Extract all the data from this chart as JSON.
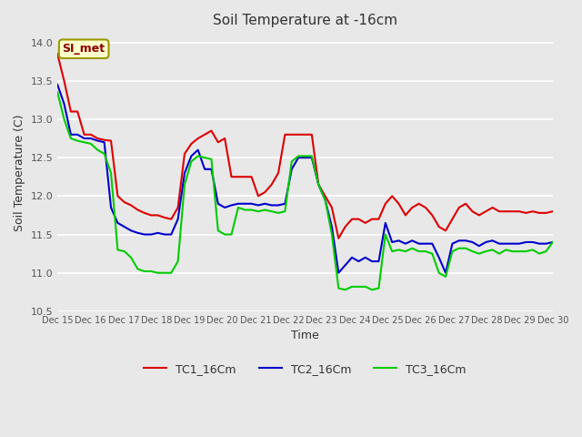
{
  "title": "Soil Temperature at -16cm",
  "xlabel": "Time",
  "ylabel": "Soil Temperature (C)",
  "ylim": [
    10.5,
    14.1
  ],
  "xlim": [
    0,
    15
  ],
  "bg_color": "#e8e8e8",
  "plot_bg_color": "#e8e8e8",
  "grid_color": "white",
  "line_colors": {
    "TC1": "#dd0000",
    "TC2": "#0000cc",
    "TC3": "#00cc00"
  },
  "line_width": 1.5,
  "legend_entries": [
    "TC1_16Cm",
    "TC2_16Cm",
    "TC3_16Cm"
  ],
  "annotation_text": "SI_met",
  "annotation_bg": "#ffffcc",
  "annotation_border": "#999900",
  "tick_labels": [
    "Dec 15",
    "Dec 16",
    "Dec 17",
    "Dec 18",
    "Dec 19",
    "Dec 20",
    "Dec 21",
    "Dec 22",
    "Dec 23",
    "Dec 24",
    "Dec 25",
    "Dec 26",
    "Dec 27",
    "Dec 28",
    "Dec 29",
    "Dec 30"
  ],
  "TC1": [
    13.85,
    13.5,
    13.1,
    13.1,
    12.8,
    12.8,
    12.75,
    12.73,
    12.72,
    12.0,
    11.92,
    11.88,
    11.82,
    11.78,
    11.75,
    11.75,
    11.72,
    11.7,
    11.85,
    12.55,
    12.68,
    12.75,
    12.8,
    12.85,
    12.7,
    12.75,
    12.25,
    12.25,
    12.25,
    12.25,
    12.0,
    12.05,
    12.15,
    12.3,
    12.8,
    12.8,
    12.8,
    12.8,
    12.8,
    12.15,
    12.0,
    11.85,
    11.45,
    11.6,
    11.7,
    11.7,
    11.65,
    11.7,
    11.7,
    11.9,
    12.0,
    11.9,
    11.75,
    11.85,
    11.9,
    11.85,
    11.75,
    11.6,
    11.55,
    11.7,
    11.85,
    11.9,
    11.8,
    11.75,
    11.8,
    11.85,
    11.8,
    11.8,
    11.8,
    11.8,
    11.78,
    11.8,
    11.78,
    11.78,
    11.8
  ],
  "TC2": [
    13.45,
    13.2,
    12.8,
    12.8,
    12.75,
    12.75,
    12.72,
    12.7,
    11.85,
    11.65,
    11.6,
    11.55,
    11.52,
    11.5,
    11.5,
    11.52,
    11.5,
    11.5,
    11.7,
    12.3,
    12.52,
    12.6,
    12.35,
    12.35,
    11.9,
    11.85,
    11.88,
    11.9,
    11.9,
    11.9,
    11.88,
    11.9,
    11.88,
    11.88,
    11.9,
    12.35,
    12.5,
    12.5,
    12.5,
    12.15,
    11.95,
    11.6,
    11.0,
    11.1,
    11.2,
    11.15,
    11.2,
    11.15,
    11.15,
    11.65,
    11.4,
    11.42,
    11.38,
    11.42,
    11.38,
    11.38,
    11.38,
    11.2,
    11.0,
    11.38,
    11.42,
    11.42,
    11.4,
    11.35,
    11.4,
    11.42,
    11.38,
    11.38,
    11.38,
    11.38,
    11.4,
    11.4,
    11.38,
    11.38,
    11.4
  ],
  "TC3": [
    13.35,
    13.0,
    12.75,
    12.72,
    12.7,
    12.68,
    12.6,
    12.55,
    12.3,
    11.3,
    11.28,
    11.2,
    11.05,
    11.02,
    11.02,
    11.0,
    11.0,
    11.0,
    11.15,
    12.15,
    12.45,
    12.52,
    12.5,
    12.48,
    11.55,
    11.5,
    11.5,
    11.85,
    11.82,
    11.82,
    11.8,
    11.82,
    11.8,
    11.78,
    11.8,
    12.45,
    12.52,
    12.52,
    12.52,
    12.15,
    11.95,
    11.5,
    10.8,
    10.78,
    10.82,
    10.82,
    10.82,
    10.78,
    10.8,
    11.5,
    11.28,
    11.3,
    11.28,
    11.32,
    11.28,
    11.28,
    11.25,
    11.0,
    10.95,
    11.28,
    11.32,
    11.32,
    11.28,
    11.25,
    11.28,
    11.3,
    11.25,
    11.3,
    11.28,
    11.28,
    11.28,
    11.3,
    11.25,
    11.28,
    11.4
  ]
}
